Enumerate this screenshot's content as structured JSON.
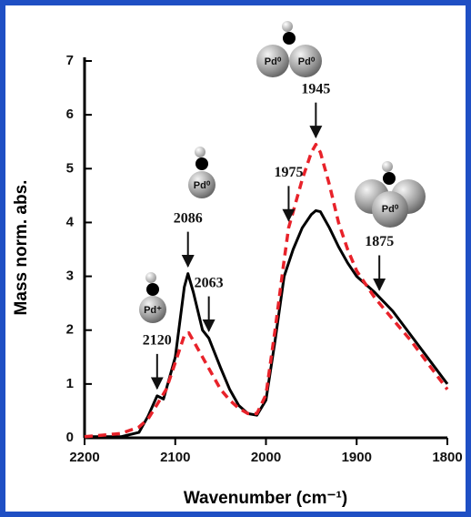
{
  "chart_data": {
    "type": "line",
    "x_label": "Wavenumber (cm⁻¹)",
    "y_label": "Mass norm. abs.",
    "xlim": [
      2200,
      1800
    ],
    "xticks": [
      2200,
      2100,
      2000,
      1900,
      1800
    ],
    "ylim": [
      0,
      7
    ],
    "yticks": [
      0,
      1,
      2,
      3,
      4,
      5,
      6,
      7
    ],
    "series": [
      {
        "color": "#000000",
        "dash": false,
        "x": [
          2200,
          2160,
          2140,
          2130,
          2120,
          2113,
          2100,
          2090,
          2086,
          2080,
          2070,
          2063,
          2050,
          2040,
          2030,
          2020,
          2010,
          2000,
          1990,
          1980,
          1970,
          1960,
          1950,
          1945,
          1940,
          1930,
          1920,
          1910,
          1900,
          1880,
          1860,
          1840,
          1820,
          1800
        ],
        "values": [
          0.02,
          0.02,
          0.1,
          0.4,
          0.78,
          0.72,
          1.5,
          2.8,
          3.05,
          2.7,
          2.0,
          1.85,
          1.3,
          0.9,
          0.6,
          0.45,
          0.42,
          0.7,
          1.8,
          3.0,
          3.5,
          3.9,
          4.15,
          4.22,
          4.2,
          3.9,
          3.55,
          3.25,
          3.0,
          2.7,
          2.35,
          1.9,
          1.45,
          1.0
        ]
      },
      {
        "color": "#e8222a",
        "dash": true,
        "x": [
          2200,
          2160,
          2140,
          2130,
          2120,
          2110,
          2100,
          2090,
          2085,
          2080,
          2070,
          2060,
          2050,
          2040,
          2030,
          2020,
          2010,
          2000,
          1990,
          1980,
          1975,
          1970,
          1960,
          1950,
          1945,
          1940,
          1930,
          1920,
          1910,
          1900,
          1880,
          1860,
          1840,
          1820,
          1800
        ],
        "values": [
          0.02,
          0.08,
          0.2,
          0.35,
          0.62,
          0.9,
          1.4,
          1.9,
          1.95,
          1.8,
          1.5,
          1.2,
          0.9,
          0.7,
          0.55,
          0.45,
          0.45,
          0.8,
          2.0,
          3.3,
          3.9,
          4.2,
          4.8,
          5.3,
          5.45,
          5.3,
          4.7,
          4.0,
          3.5,
          3.1,
          2.6,
          2.2,
          1.8,
          1.35,
          0.9
        ]
      }
    ],
    "annotations": [
      {
        "text": "2120",
        "x": 2120
      },
      {
        "text": "2086",
        "x": 2086
      },
      {
        "text": "2063",
        "x": 2063
      },
      {
        "text": "1975",
        "x": 1975
      },
      {
        "text": "1945",
        "x": 1945
      },
      {
        "text": "1875",
        "x": 1875
      }
    ],
    "icons": [
      {
        "labels": [
          "Pd⁺"
        ]
      },
      {
        "labels": [
          "Pd⁰"
        ]
      },
      {
        "labels": [
          "Pd⁰",
          "Pd⁰"
        ]
      },
      {
        "labels": [
          "Pd⁰"
        ]
      }
    ]
  }
}
